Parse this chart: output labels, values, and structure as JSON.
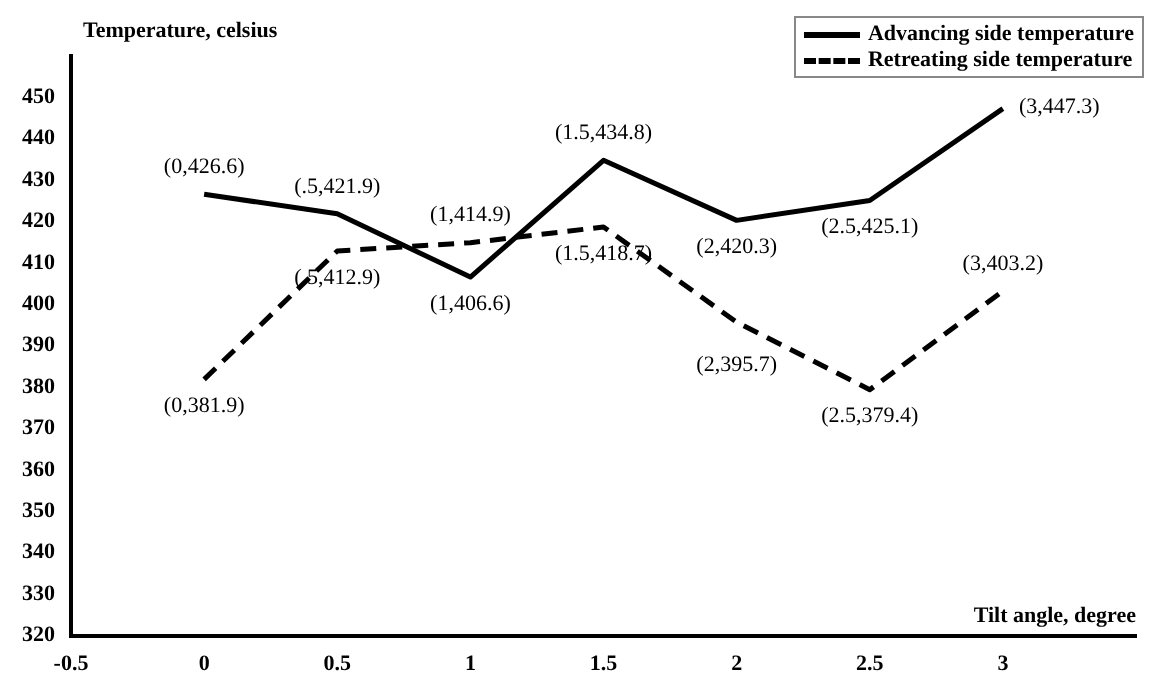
{
  "chart_data": {
    "type": "line",
    "xlabel": "Tilt angle, degree",
    "ylabel": "Temperature, celsius",
    "x": [
      0,
      0.5,
      1,
      1.5,
      2,
      2.5,
      3
    ],
    "series": [
      {
        "name": "Advancing side temperature",
        "color": "#000000",
        "line_style": "solid",
        "values": [
          426.6,
          421.9,
          406.6,
          434.8,
          420.3,
          425.1,
          447.3
        ]
      },
      {
        "name": "Retreating side temperature",
        "color": "#000000",
        "line_style": "dashed",
        "values": [
          381.9,
          412.9,
          414.9,
          418.7,
          395.7,
          379.4,
          403.2
        ]
      }
    ],
    "annotations": [
      {
        "text": "(0,426.6)",
        "x": 0,
        "y": 426.6
      },
      {
        "text": "(.5,421.9)",
        "x": 0.5,
        "y": 421.9
      },
      {
        "text": "(1,406.6)",
        "x": 1,
        "y": 406.6
      },
      {
        "text": "(1.5,434.8)",
        "x": 1.5,
        "y": 434.8
      },
      {
        "text": "(2,420.3)",
        "x": 2,
        "y": 420.3
      },
      {
        "text": "(2.5,425.1)",
        "x": 2.5,
        "y": 425.1
      },
      {
        "text": "(3,447.3)",
        "x": 3,
        "y": 447.3
      },
      {
        "text": "(0,381.9)",
        "x": 0,
        "y": 381.9
      },
      {
        "text": "(.5,412.9)",
        "x": 0.5,
        "y": 412.9
      },
      {
        "text": "(1,414.9)",
        "x": 1,
        "y": 414.9
      },
      {
        "text": "(1.5,418.7)",
        "x": 1.5,
        "y": 418.7
      },
      {
        "text": "(2,395.7)",
        "x": 2,
        "y": 395.7
      },
      {
        "text": "(2.5,379.4)",
        "x": 2.5,
        "y": 379.4
      },
      {
        "text": "(3,403.2)",
        "x": 3,
        "y": 403.2
      }
    ],
    "xlim": [
      -0.5,
      3.5
    ],
    "xticks": [
      -0.5,
      0,
      0.5,
      1,
      1.5,
      2,
      2.5,
      3
    ],
    "ylim": [
      320,
      460
    ],
    "yticks": [
      320,
      330,
      340,
      350,
      360,
      370,
      380,
      390,
      400,
      410,
      420,
      430,
      440,
      450
    ],
    "grid": false,
    "legend": "top right",
    "marker": "none"
  }
}
